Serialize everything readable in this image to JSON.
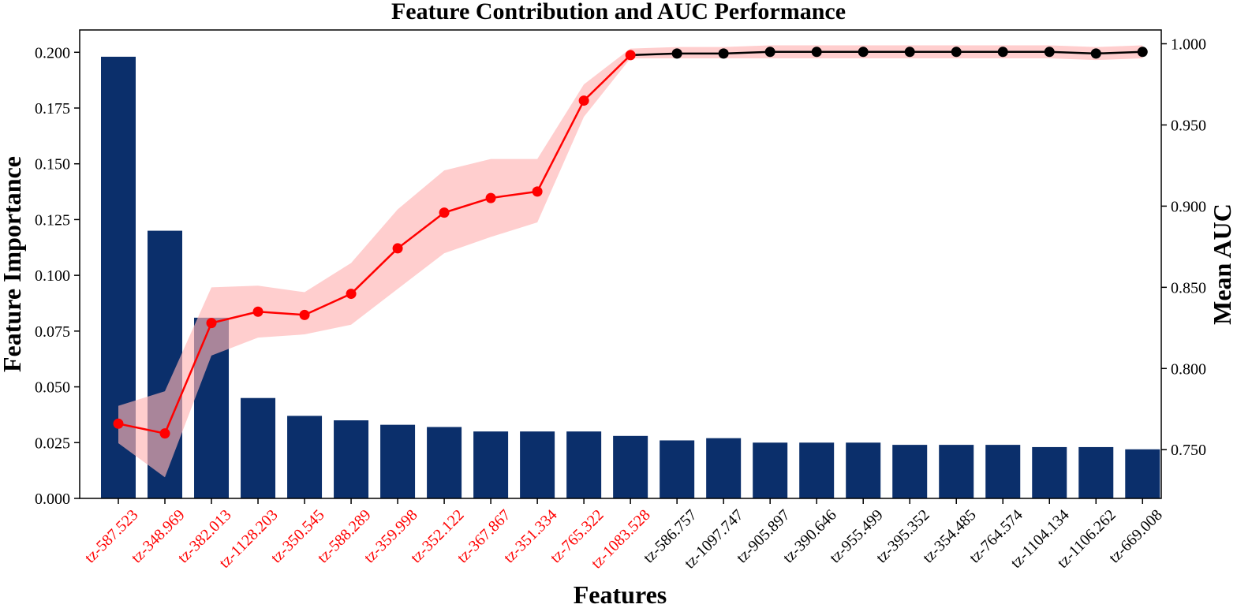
{
  "chart_data": {
    "type": "bar",
    "title": "Feature Contribution and AUC Performance",
    "xlabel": "Features",
    "ylabel": "Feature Importance",
    "ylabel_right": "Mean AUC",
    "ylim": [
      0,
      0.21
    ],
    "ylim_right": [
      0.72,
      1.0085
    ],
    "yticks": [
      "0.000",
      "0.025",
      "0.050",
      "0.075",
      "0.100",
      "0.125",
      "0.150",
      "0.175",
      "0.200"
    ],
    "yticks_right": [
      "0.750",
      "0.800",
      "0.850",
      "0.900",
      "0.950",
      "1.000"
    ],
    "categories": [
      "tz-587.523",
      "tz-348.969",
      "tz-382.013",
      "tz-1128.203",
      "tz-350.545",
      "tz-588.289",
      "tz-359.998",
      "tz-352.122",
      "tz-367.867",
      "tz-351.334",
      "tz-765.322",
      "tz-1083.528",
      "tz-586.757",
      "tz-1097.747",
      "tz-905.897",
      "tz-390.646",
      "tz-955.499",
      "tz-395.352",
      "tz-354.485",
      "tz-764.574",
      "tz-1104.134",
      "tz-1106.262",
      "tz-669.008"
    ],
    "highlighted_count": 12,
    "series": [
      {
        "name": "Feature Importance",
        "type": "bar",
        "axis": "left",
        "values": [
          0.198,
          0.12,
          0.081,
          0.045,
          0.037,
          0.035,
          0.033,
          0.032,
          0.03,
          0.03,
          0.03,
          0.028,
          0.026,
          0.027,
          0.025,
          0.025,
          0.025,
          0.024,
          0.024,
          0.024,
          0.023,
          0.023,
          0.022
        ]
      },
      {
        "name": "Mean AUC",
        "type": "line",
        "axis": "right",
        "values": [
          0.766,
          0.76,
          0.828,
          0.835,
          0.833,
          0.846,
          0.874,
          0.896,
          0.905,
          0.909,
          0.965,
          0.993,
          0.994,
          0.994,
          0.995,
          0.995,
          0.995,
          0.995,
          0.995,
          0.995,
          0.995,
          0.994,
          0.995
        ],
        "band_lower": [
          0.754,
          0.733,
          0.808,
          0.819,
          0.821,
          0.827,
          0.849,
          0.871,
          0.881,
          0.89,
          0.955,
          0.991,
          0.991,
          0.991,
          0.991,
          0.991,
          0.991,
          0.991,
          0.991,
          0.991,
          0.991,
          0.99,
          0.991
        ],
        "band_upper": [
          0.777,
          0.786,
          0.85,
          0.851,
          0.847,
          0.865,
          0.898,
          0.922,
          0.929,
          0.929,
          0.975,
          0.997,
          0.998,
          0.998,
          0.999,
          0.999,
          0.999,
          0.999,
          0.999,
          0.999,
          0.999,
          0.998,
          0.999
        ]
      }
    ],
    "colors": {
      "bar": "#0b2f6b",
      "highlight": "#ff0000",
      "band": "#ffb3b3",
      "normal": "#000000"
    }
  }
}
